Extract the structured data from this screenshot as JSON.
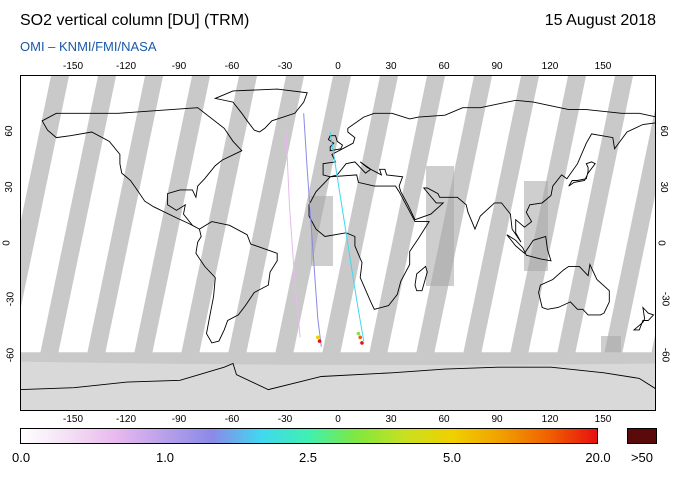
{
  "header": {
    "title": "SO2 vertical column [DU] (TRM)",
    "date": "15 August 2018",
    "subtitle": "OMI  –  KNMI/FMI/NASA"
  },
  "map": {
    "projection": "equirectangular",
    "lon_range": [
      -180,
      180
    ],
    "lat_range": [
      -90,
      90
    ],
    "lon_ticks": [
      "-150",
      "-120",
      "-90",
      "-60",
      "-30",
      "0",
      "30",
      "60",
      "90",
      "120",
      "150"
    ],
    "lat_ticks": [
      "60",
      "30",
      "0",
      "-30",
      "-60"
    ],
    "no_data_color": "#c9c9c9",
    "land_outline_color": "#000000"
  },
  "colorbar": {
    "labels": [
      "0.0",
      "1.0",
      "2.5",
      "5.0",
      "20.0"
    ],
    "overflow_label": ">50",
    "overflow_color": "#5a0a0a",
    "colors": [
      "#ffffff",
      "#f4dff4",
      "#e8b8ee",
      "#b8a0ea",
      "#8a8ae8",
      "#40d8f0",
      "#40f0b0",
      "#80e840",
      "#c8e020",
      "#f0d000",
      "#f0a000",
      "#f06000",
      "#e81010"
    ]
  }
}
